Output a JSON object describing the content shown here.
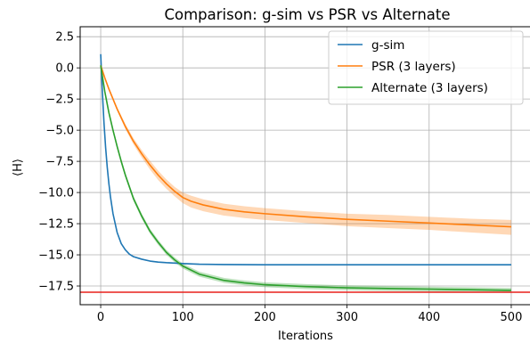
{
  "chart_data": {
    "type": "line",
    "title": "Comparison: g-sim vs PSR vs Alternate",
    "xlabel": "Iterations",
    "ylabel": "⟨H⟩",
    "xlim": [
      -25,
      525
    ],
    "ylim": [
      -19.0,
      3.3
    ],
    "x_ticks": [
      0,
      100,
      200,
      300,
      400,
      500
    ],
    "x_tick_labels": [
      "0",
      "100",
      "200",
      "300",
      "400",
      "500"
    ],
    "y_ticks": [
      2.5,
      0.0,
      -2.5,
      -5.0,
      -7.5,
      -10.0,
      -12.5,
      -15.0,
      -17.5
    ],
    "y_tick_labels": [
      "2.5",
      "0.0",
      "−2.5",
      "−5.0",
      "−7.5",
      "−10.0",
      "−12.5",
      "−15.0",
      "−17.5"
    ],
    "grid": true,
    "legend_position": "top-right",
    "reference_line": {
      "y": -18.0,
      "color": "#e8211c"
    },
    "series": [
      {
        "name": "g-sim",
        "color": "#1f77b4",
        "x": [
          0,
          2,
          4,
          6,
          8,
          10,
          12,
          15,
          20,
          25,
          30,
          35,
          40,
          50,
          60,
          70,
          80,
          100,
          120,
          150,
          200,
          250,
          300,
          350,
          400,
          450,
          500
        ],
        "y": [
          1.1,
          -1.9,
          -4.4,
          -6.4,
          -8.0,
          -9.3,
          -10.4,
          -11.7,
          -13.2,
          -14.1,
          -14.6,
          -14.95,
          -15.15,
          -15.35,
          -15.5,
          -15.58,
          -15.63,
          -15.7,
          -15.75,
          -15.78,
          -15.8,
          -15.8,
          -15.8,
          -15.8,
          -15.8,
          -15.8,
          -15.8
        ],
        "band": 0.05
      },
      {
        "name": "PSR (3 layers)",
        "color": "#ff7f0e",
        "x": [
          0,
          5,
          10,
          20,
          30,
          40,
          50,
          60,
          70,
          80,
          90,
          100,
          110,
          125,
          150,
          175,
          200,
          250,
          300,
          350,
          400,
          450,
          500
        ],
        "y": [
          0.2,
          -0.8,
          -1.7,
          -3.3,
          -4.7,
          -5.9,
          -6.9,
          -7.8,
          -8.6,
          -9.3,
          -9.9,
          -10.4,
          -10.7,
          -11.0,
          -11.35,
          -11.55,
          -11.7,
          -11.95,
          -12.15,
          -12.3,
          -12.45,
          -12.6,
          -12.75
        ],
        "band_lower": [
          0.0,
          0.05,
          0.1,
          0.15,
          0.2,
          0.25,
          0.3,
          0.35,
          0.4,
          0.4,
          0.4,
          0.45,
          0.5,
          0.5,
          0.5,
          0.5,
          0.5,
          0.5,
          0.55,
          0.55,
          0.55,
          0.6,
          0.65
        ],
        "band_upper": [
          0.0,
          0.05,
          0.1,
          0.15,
          0.2,
          0.25,
          0.3,
          0.35,
          0.35,
          0.35,
          0.35,
          0.4,
          0.45,
          0.45,
          0.45,
          0.45,
          0.45,
          0.45,
          0.45,
          0.5,
          0.5,
          0.5,
          0.55
        ]
      },
      {
        "name": "Alternate (3 layers)",
        "color": "#2ca02c",
        "x": [
          0,
          5,
          10,
          15,
          20,
          25,
          30,
          40,
          50,
          60,
          70,
          80,
          90,
          100,
          120,
          150,
          175,
          200,
          250,
          300,
          350,
          400,
          450,
          500
        ],
        "y": [
          0.2,
          -1.9,
          -3.6,
          -5.0,
          -6.3,
          -7.5,
          -8.6,
          -10.5,
          -11.9,
          -13.1,
          -14.0,
          -14.8,
          -15.4,
          -15.9,
          -16.55,
          -17.05,
          -17.25,
          -17.4,
          -17.55,
          -17.65,
          -17.7,
          -17.75,
          -17.8,
          -17.85
        ],
        "band": 0.2
      }
    ]
  }
}
